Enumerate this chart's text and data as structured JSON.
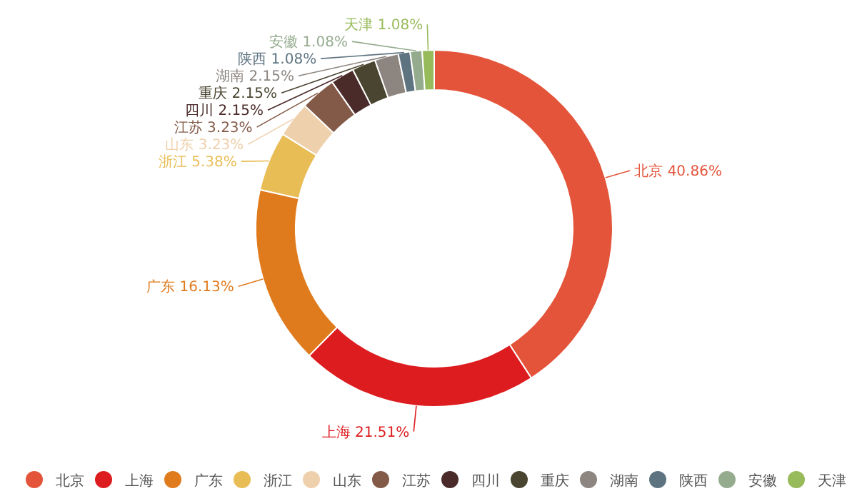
{
  "chart_data": {
    "type": "donut",
    "categories": [
      "北京",
      "上海",
      "广东",
      "浙江",
      "山东",
      "江苏",
      "四川",
      "重庆",
      "湖南",
      "陕西",
      "安徽",
      "天津"
    ],
    "values": [
      40.86,
      21.51,
      16.13,
      5.38,
      3.23,
      3.23,
      2.15,
      2.15,
      2.15,
      1.08,
      1.08,
      1.08
    ],
    "colors": [
      "#e4543a",
      "#dd1c1f",
      "#e07b1d",
      "#e8bd55",
      "#efd0ac",
      "#835a48",
      "#4b2a2a",
      "#4a4530",
      "#8c8580",
      "#5d7380",
      "#95ab8e",
      "#97ba5a"
    ],
    "value_labels": [
      "40.86%",
      "21.51%",
      "16.13%",
      "5.38%",
      "3.23%",
      "3.23%",
      "2.15%",
      "2.15%",
      "2.15%",
      "1.08%",
      "1.08%",
      "1.08%"
    ],
    "legend": "bottom"
  }
}
